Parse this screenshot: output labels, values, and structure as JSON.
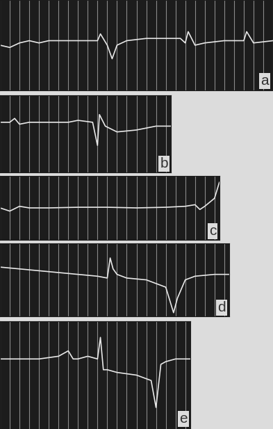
{
  "chart_data": [
    {
      "type": "line",
      "title": "a",
      "color": "#e8e8e8",
      "grid": true,
      "tick_labels": false,
      "xlim": [
        0,
        28
      ],
      "ylim": [
        -1,
        1
      ],
      "xticks": [
        0,
        1,
        2,
        3,
        4,
        5,
        6,
        7,
        8,
        9,
        10,
        11,
        12,
        13,
        14,
        15,
        16,
        17,
        18,
        19,
        20,
        21,
        22,
        23,
        24,
        25,
        26,
        27,
        28
      ],
      "x": [
        0,
        1,
        2,
        3,
        4,
        5,
        7,
        9,
        10,
        10.3,
        11,
        11.5,
        12,
        13,
        15,
        17,
        18.5,
        19,
        19.3,
        20,
        21,
        23,
        25,
        25.3,
        26,
        28
      ],
      "values": [
        0.0,
        -0.05,
        0.05,
        0.1,
        0.05,
        0.1,
        0.1,
        0.1,
        0.1,
        0.25,
        0.0,
        -0.3,
        0.0,
        0.1,
        0.15,
        0.15,
        0.15,
        0.05,
        0.3,
        0.0,
        0.05,
        0.1,
        0.1,
        0.3,
        0.05,
        0.1
      ]
    },
    {
      "type": "line",
      "title": "b",
      "color": "#e8e8e8",
      "grid": true,
      "tick_labels": false,
      "xlim": [
        0,
        17.5
      ],
      "ylim": [
        -1,
        1
      ],
      "xticks": [
        0,
        1,
        2,
        3,
        4,
        5,
        6,
        7,
        8,
        9,
        10,
        11,
        12,
        13,
        14,
        15,
        16,
        17
      ],
      "x": [
        0,
        1,
        1.5,
        2,
        3,
        5,
        7,
        8,
        9.5,
        10,
        10.2,
        10.8,
        12,
        14,
        16,
        17.5
      ],
      "values": [
        0.3,
        0.3,
        0.4,
        0.25,
        0.3,
        0.3,
        0.3,
        0.35,
        0.3,
        -0.3,
        0.5,
        0.2,
        0.05,
        0.1,
        0.2,
        0.2
      ]
    },
    {
      "type": "line",
      "title": "c",
      "color": "#e8e8e8",
      "grid": true,
      "tick_labels": false,
      "xlim": [
        0,
        22.5
      ],
      "ylim": [
        -1,
        1
      ],
      "xticks": [
        0,
        1,
        2,
        3,
        4,
        5,
        6,
        7,
        8,
        9,
        10,
        11,
        12,
        13,
        14,
        15,
        16,
        17,
        18,
        19,
        20,
        21,
        22
      ],
      "x": [
        0,
        1,
        2,
        3,
        5,
        8,
        11,
        14,
        17,
        19,
        20,
        20.5,
        21,
        22,
        22.5
      ],
      "values": [
        0.0,
        -0.1,
        0.05,
        0.0,
        0.0,
        0.02,
        0.02,
        0.0,
        0.02,
        0.05,
        0.1,
        -0.05,
        0.05,
        0.3,
        0.8
      ]
    },
    {
      "type": "line",
      "title": "d",
      "color": "#e8e8e8",
      "grid": true,
      "tick_labels": false,
      "xlim": [
        0,
        23.5
      ],
      "ylim": [
        -1,
        1
      ],
      "xticks": [
        0,
        1,
        2,
        3,
        4,
        5,
        6,
        7,
        8,
        9,
        10,
        11,
        12,
        13,
        14,
        15,
        16,
        17,
        18,
        19,
        20,
        21,
        22,
        23
      ],
      "x": [
        0,
        2,
        4,
        6,
        8,
        10,
        11,
        11.3,
        11.6,
        12,
        13,
        15,
        17,
        17.8,
        18.2,
        19,
        20,
        22,
        23.5
      ],
      "values": [
        0.35,
        0.3,
        0.25,
        0.2,
        0.15,
        0.1,
        0.05,
        0.6,
        0.3,
        0.15,
        0.05,
        0.0,
        -0.2,
        -0.9,
        -0.5,
        0.0,
        0.1,
        0.15,
        0.15
      ]
    },
    {
      "type": "line",
      "title": "e",
      "color": "#e8e8e8",
      "grid": true,
      "tick_labels": false,
      "xlim": [
        0,
        19.5
      ],
      "ylim": [
        -1,
        1
      ],
      "xticks": [
        0,
        1,
        2,
        3,
        4,
        5,
        6,
        7,
        8,
        9,
        10,
        11,
        12,
        13,
        14,
        15,
        16,
        17,
        18,
        19
      ],
      "x": [
        0,
        2,
        4,
        6,
        7,
        7.5,
        8,
        9,
        10,
        10.3,
        10.6,
        11,
        12,
        14,
        15.5,
        16,
        16.5,
        17,
        18,
        19.5
      ],
      "values": [
        0.3,
        0.3,
        0.3,
        0.35,
        0.45,
        0.3,
        0.3,
        0.35,
        0.3,
        0.7,
        0.1,
        0.1,
        0.05,
        0.0,
        -0.1,
        -0.6,
        0.2,
        0.25,
        0.3,
        0.3
      ]
    }
  ]
}
